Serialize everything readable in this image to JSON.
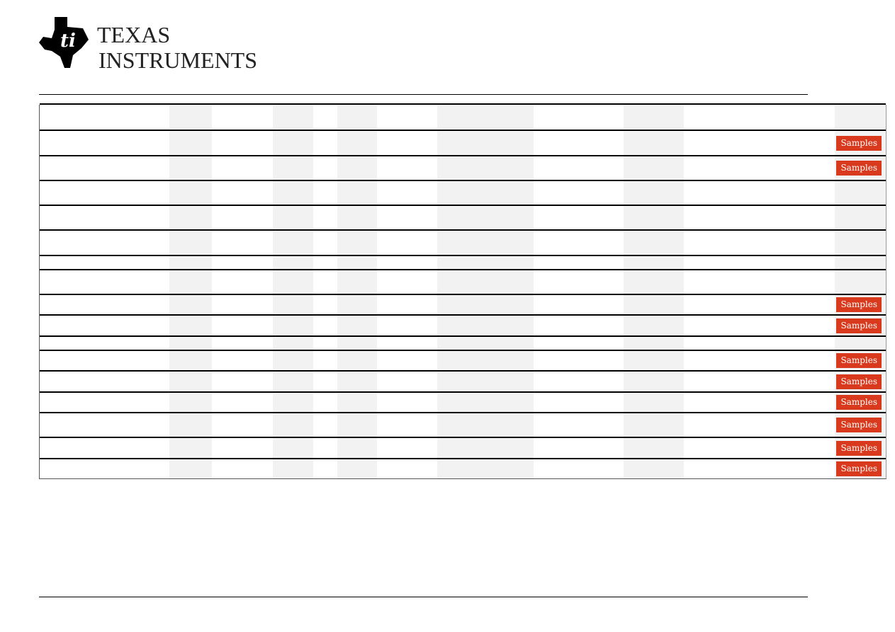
{
  "header": {
    "logo_text_line1": "TEXAS",
    "logo_text_line2": "INSTRUMENTS"
  },
  "table": {
    "sample_button_label": "Samples",
    "accent_color": "#d9391c",
    "rows": [
      {
        "samples": false
      },
      {
        "samples": true
      },
      {
        "samples": true
      },
      {
        "samples": false
      },
      {
        "samples": false
      },
      {
        "samples": false
      },
      {
        "samples": false
      },
      {
        "samples": false
      },
      {
        "samples": true
      },
      {
        "samples": true
      },
      {
        "samples": false
      },
      {
        "samples": true
      },
      {
        "samples": true
      },
      {
        "samples": true
      },
      {
        "samples": true
      },
      {
        "samples": true
      },
      {
        "samples": true
      }
    ]
  }
}
